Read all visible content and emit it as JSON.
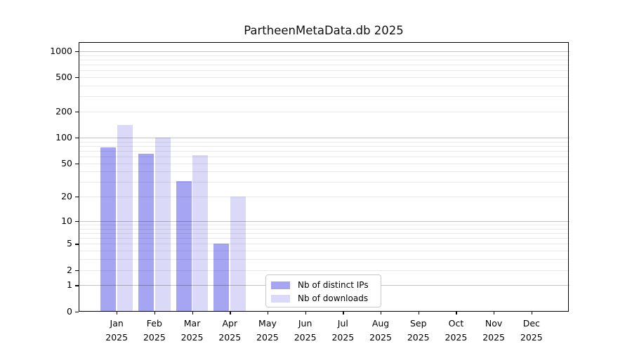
{
  "title": "PartheenMetaData.db 2025",
  "chart_data": {
    "type": "bar",
    "title": "PartheenMetaData.db 2025",
    "categories": [
      "Jan",
      "Feb",
      "Mar",
      "Apr",
      "May",
      "Jun",
      "Jul",
      "Aug",
      "Sep",
      "Oct",
      "Nov",
      "Dec"
    ],
    "category_year": "2025",
    "series": [
      {
        "name": "Nb of distinct IPs",
        "color": "#a5a5f2",
        "values": [
          77,
          65,
          31,
          5,
          0,
          0,
          0,
          0,
          0,
          0,
          0,
          0
        ]
      },
      {
        "name": "Nb of downloads",
        "color": "#dadaf8",
        "values": [
          140,
          100,
          62,
          20,
          0,
          0,
          0,
          0,
          0,
          0,
          0,
          0
        ]
      }
    ],
    "y_scale": "log1p",
    "ylim": [
      0,
      1000
    ],
    "y_ticks": [
      0,
      1,
      2,
      5,
      10,
      20,
      50,
      100,
      200,
      500,
      1000
    ],
    "grid": "on",
    "grid_over_bars": true,
    "legend_position": "lower-center-inside"
  },
  "colors": {
    "background": "#ffffff",
    "frame": "#000000",
    "text": "#000000",
    "grid_major": "rgba(0,0,0,0.24)",
    "grid_minor": "rgba(0,0,0,0.085)",
    "legend_border": "#c9c9c9"
  }
}
